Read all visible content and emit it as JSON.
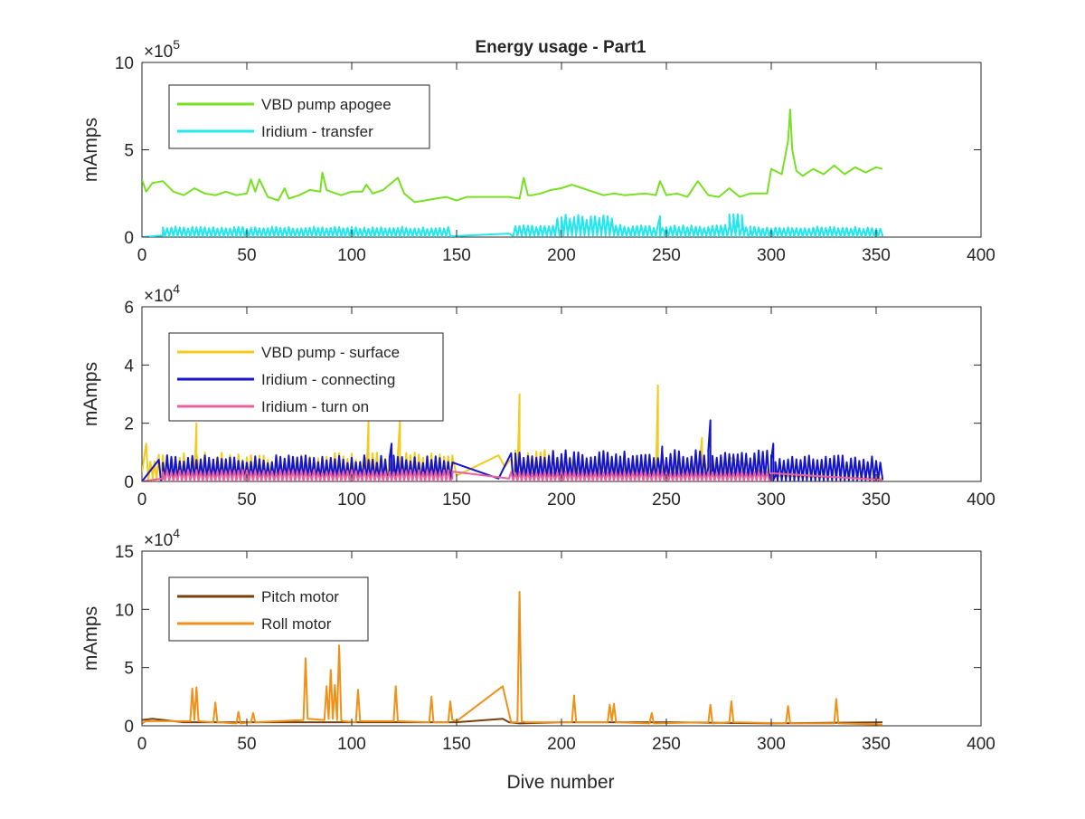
{
  "figure": {
    "title": "Energy usage - Part1",
    "xlabel": "Dive number"
  },
  "chart_data": [
    {
      "type": "line",
      "title": "Energy usage - Part1",
      "xlabel": "",
      "ylabel": "mAmps",
      "xlim": [
        0,
        400
      ],
      "ylim": [
        0,
        10
      ],
      "xticks": [
        "0",
        "50",
        "100",
        "150",
        "200",
        "250",
        "300",
        "350",
        "400"
      ],
      "yticks": [
        "0",
        "5",
        "10"
      ],
      "y_exponent": "5",
      "y_multiplier": "×10",
      "grid": false,
      "legend_position": "top-left",
      "series": [
        {
          "name": "VBD pump apogee",
          "color": "#77e022",
          "x": [
            0,
            2,
            5,
            10,
            15,
            20,
            25,
            30,
            35,
            40,
            45,
            50,
            52,
            54,
            56,
            60,
            65,
            68,
            70,
            75,
            80,
            85,
            86,
            88,
            90,
            95,
            100,
            105,
            107,
            110,
            115,
            120,
            122,
            125,
            130,
            135,
            140,
            145,
            150,
            155,
            160,
            165,
            170,
            175,
            180,
            182,
            184,
            186,
            190,
            195,
            200,
            205,
            210,
            215,
            220,
            225,
            230,
            240,
            245,
            247,
            250,
            255,
            260,
            265,
            270,
            275,
            280,
            285,
            290,
            295,
            298,
            300,
            305,
            308,
            309,
            310,
            312,
            315,
            320,
            325,
            330,
            335,
            340,
            345,
            350,
            353
          ],
          "values": [
            3.3,
            2.6,
            3.1,
            3.2,
            2.6,
            2.4,
            2.8,
            2.5,
            2.4,
            2.6,
            2.4,
            2.5,
            3.3,
            2.6,
            3.3,
            2.3,
            2.1,
            2.8,
            2.2,
            2.4,
            2.7,
            2.6,
            3.7,
            2.7,
            2.6,
            2.4,
            2.6,
            2.6,
            3.0,
            2.5,
            2.7,
            3.2,
            3.4,
            2.5,
            2.0,
            2.1,
            2.2,
            2.3,
            2.1,
            2.3,
            2.3,
            2.3,
            2.3,
            2.3,
            2.2,
            3.4,
            2.4,
            2.4,
            2.5,
            2.7,
            2.8,
            3.0,
            2.8,
            2.6,
            2.4,
            2.5,
            2.4,
            2.5,
            2.4,
            3.2,
            2.4,
            2.5,
            2.3,
            3.2,
            2.4,
            2.3,
            2.8,
            2.3,
            2.5,
            2.5,
            2.5,
            3.9,
            3.6,
            5.5,
            7.3,
            5.0,
            3.8,
            3.5,
            3.9,
            3.6,
            4.1,
            3.6,
            4.0,
            3.7,
            4.0,
            3.9
          ]
        },
        {
          "name": "Iridium - transfer",
          "color": "#22e8ee",
          "x": [
            0,
            10,
            147,
            175,
            200,
            201,
            247,
            249,
            280,
            284,
            286,
            290,
            353
          ],
          "values": [
            0,
            0.1,
            0.1,
            0.2,
            0.5,
            0.3,
            1.2,
            0.3,
            0.6,
            1.3,
            0.5,
            0.2,
            0.1
          ],
          "spike_bands": [
            [
              10,
              147,
              0.3,
              0.6
            ],
            [
              177,
              197,
              0.4,
              0.7
            ],
            [
              198,
              225,
              0.6,
              1.3
            ],
            [
              226,
              290,
              0.3,
              0.7
            ],
            [
              280,
              287,
              0.8,
              1.4
            ],
            [
              290,
              353,
              0.3,
              0.6
            ]
          ]
        }
      ]
    },
    {
      "type": "line",
      "title": "",
      "xlabel": "",
      "ylabel": "mAmps",
      "xlim": [
        0,
        400
      ],
      "ylim": [
        0,
        6
      ],
      "xticks": [
        "0",
        "50",
        "100",
        "150",
        "200",
        "250",
        "300",
        "350",
        "400"
      ],
      "yticks": [
        "0",
        "2",
        "4",
        "6"
      ],
      "y_exponent": "4",
      "y_multiplier": "×10",
      "grid": false,
      "legend_position": "top-left",
      "series": [
        {
          "name": "VBD pump - surface",
          "color": "#f2cb1e",
          "x": [
            0,
            2,
            5,
            25,
            26,
            27,
            107,
            108,
            109,
            122,
            123,
            124,
            148,
            150,
            170,
            173,
            175,
            178,
            180,
            182,
            185,
            200,
            244,
            246,
            248,
            265,
            267,
            269,
            275,
            280,
            300,
            353
          ],
          "values": [
            0.3,
            1.3,
            0.2,
            0.8,
            2.0,
            0.5,
            0.8,
            2.1,
            0.6,
            0.8,
            2.1,
            0.6,
            0.9,
            0.2,
            0.9,
            0.5,
            0.7,
            0.8,
            3.0,
            0.8,
            0.5,
            0.9,
            0.7,
            3.3,
            0.6,
            0.5,
            1.5,
            0.4,
            0.5,
            0.3,
            0.2,
            0.1
          ],
          "spike_bands": [
            [
              3,
              148,
              0.2,
              1.0
            ],
            [
              176,
              200,
              0.3,
              1.1
            ],
            [
              200,
              280,
              0.2,
              0.9
            ]
          ]
        },
        {
          "name": "Iridium - connecting",
          "color": "#1414c8",
          "x": [
            0,
            10,
            118,
            119,
            120,
            170,
            178,
            247,
            248,
            270,
            271,
            272,
            300,
            301,
            302,
            353
          ],
          "values": [
            0,
            0.1,
            0.4,
            1.3,
            0.4,
            0.1,
            0.3,
            0.3,
            1.2,
            0.5,
            2.1,
            0.4,
            0.3,
            1.3,
            0.2,
            0.1
          ],
          "spike_bands": [
            [
              8,
              148,
              0.3,
              0.9
            ],
            [
              176,
              300,
              0.4,
              1.1
            ],
            [
              300,
              353,
              0.3,
              0.9
            ]
          ]
        },
        {
          "name": "Iridium - turn on",
          "color": "#e8619e",
          "x": [
            0,
            10,
            148,
            175,
            300,
            353
          ],
          "values": [
            0,
            0.1,
            0.1,
            0.1,
            0.05,
            0.05
          ],
          "spike_bands": [
            [
              10,
              148,
              0.2,
              0.4
            ],
            [
              176,
              300,
              0.2,
              0.35
            ]
          ]
        }
      ]
    },
    {
      "type": "line",
      "title": "",
      "xlabel": "Dive number",
      "ylabel": "mAmps",
      "xlim": [
        0,
        400
      ],
      "ylim": [
        0,
        15
      ],
      "xticks": [
        "0",
        "50",
        "100",
        "150",
        "200",
        "250",
        "300",
        "350",
        "400"
      ],
      "yticks": [
        "0",
        "5",
        "10",
        "15"
      ],
      "y_exponent": "4",
      "y_multiplier": "×10",
      "grid": false,
      "legend_position": "top-left",
      "series": [
        {
          "name": "Pitch motor",
          "color": "#7a3f0c",
          "x": [
            0,
            5,
            20,
            50,
            100,
            150,
            172,
            175,
            180,
            200,
            250,
            300,
            353
          ],
          "values": [
            0.5,
            0.6,
            0.3,
            0.3,
            0.3,
            0.3,
            0.6,
            0.3,
            0.2,
            0.3,
            0.3,
            0.2,
            0.3
          ]
        },
        {
          "name": "Roll motor",
          "color": "#ef9118",
          "x": [
            0,
            2,
            23,
            24,
            25,
            26,
            27,
            34,
            35,
            36,
            45,
            46,
            47,
            52,
            53,
            54,
            77,
            78,
            79,
            87,
            88,
            89,
            90,
            91,
            92,
            93,
            94,
            95,
            96,
            102,
            103,
            104,
            120,
            121,
            122,
            137,
            138,
            139,
            146,
            147,
            148,
            150,
            172,
            176,
            179,
            180,
            181,
            183,
            205,
            206,
            207,
            222,
            223,
            224,
            225,
            226,
            242,
            243,
            244,
            270,
            271,
            272,
            280,
            281,
            282,
            307,
            308,
            309,
            330,
            331,
            332,
            353
          ],
          "values": [
            0.2,
            0.4,
            0.4,
            3.2,
            0.5,
            3.3,
            0.4,
            0.3,
            2.0,
            0.3,
            0.2,
            1.2,
            0.2,
            0.3,
            1.1,
            0.3,
            0.5,
            5.8,
            0.6,
            0.5,
            3.4,
            0.6,
            4.8,
            0.6,
            3.5,
            0.5,
            6.9,
            0.5,
            0.4,
            0.3,
            3.1,
            0.4,
            0.4,
            3.4,
            0.4,
            0.3,
            2.5,
            0.3,
            0.3,
            2.1,
            0.5,
            0.4,
            3.4,
            0.3,
            0.3,
            11.5,
            0.4,
            0.3,
            0.3,
            2.6,
            0.3,
            0.3,
            1.8,
            0.4,
            1.9,
            0.3,
            0.2,
            1.1,
            0.2,
            0.3,
            1.8,
            0.2,
            0.3,
            2.1,
            0.3,
            0.2,
            1.7,
            0.2,
            0.2,
            2.3,
            0.2,
            0.1
          ]
        }
      ]
    }
  ]
}
